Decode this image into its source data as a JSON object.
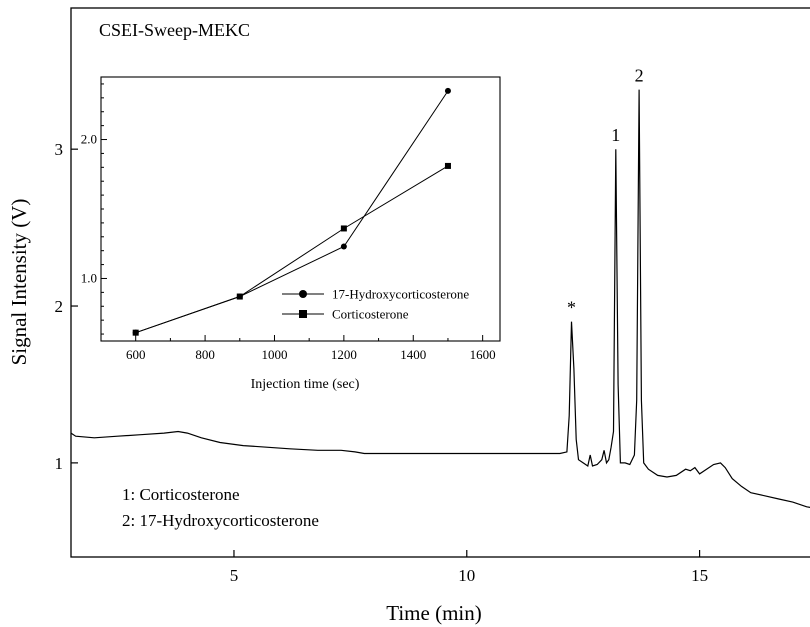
{
  "chart_data": [
    {
      "type": "line",
      "title": "CSEI-Sweep-MEKC",
      "xlabel": "Time (min)",
      "ylabel": "Signal Intensity (V)",
      "xlim": [
        1.5,
        17.5
      ],
      "ylim": [
        0.4,
        3.9
      ],
      "xticks": [
        5,
        10,
        15
      ],
      "yticks": [
        1,
        2,
        3
      ],
      "grid": false,
      "series": [
        {
          "name": "",
          "x": [
            1.5,
            1.6,
            2.0,
            2.5,
            3.0,
            3.5,
            3.8,
            4.0,
            4.3,
            4.7,
            5.2,
            5.7,
            6.2,
            6.8,
            7.3,
            7.6,
            7.8,
            8.5,
            9.0,
            9.5,
            10.0,
            10.5,
            11.0,
            11.5,
            12.0,
            12.15,
            12.2,
            12.25,
            12.3,
            12.35,
            12.4,
            12.5,
            12.6,
            12.65,
            12.7,
            12.8,
            12.9,
            12.95,
            13.0,
            13.05,
            13.1,
            13.15,
            13.2,
            13.25,
            13.3,
            13.4,
            13.5,
            13.6,
            13.65,
            13.7,
            13.75,
            13.8,
            13.9,
            14.1,
            14.3,
            14.5,
            14.7,
            14.8,
            14.9,
            15.0,
            15.1,
            15.3,
            15.45,
            15.55,
            15.7,
            15.9,
            16.1,
            16.4,
            16.7,
            17.0,
            17.3,
            17.5
          ],
          "values": [
            1.19,
            1.17,
            1.16,
            1.17,
            1.18,
            1.19,
            1.2,
            1.19,
            1.16,
            1.13,
            1.11,
            1.1,
            1.09,
            1.08,
            1.08,
            1.07,
            1.06,
            1.06,
            1.06,
            1.06,
            1.06,
            1.06,
            1.06,
            1.06,
            1.06,
            1.07,
            1.3,
            1.9,
            1.6,
            1.15,
            1.02,
            1.0,
            0.98,
            1.05,
            0.98,
            0.99,
            1.02,
            1.08,
            1.0,
            1.02,
            1.1,
            1.2,
            3.0,
            1.5,
            1.0,
            1.0,
            0.99,
            1.05,
            1.4,
            3.38,
            1.4,
            1.0,
            0.96,
            0.92,
            0.91,
            0.92,
            0.96,
            0.95,
            0.97,
            0.93,
            0.95,
            0.99,
            1.0,
            0.97,
            0.9,
            0.85,
            0.81,
            0.79,
            0.77,
            0.75,
            0.72,
            0.71
          ]
        }
      ],
      "peak_labels": [
        {
          "label": "*",
          "x": 12.25,
          "y": 1.9
        },
        {
          "label": "1",
          "x": 13.2,
          "y": 3.0
        },
        {
          "label": "2",
          "x": 13.7,
          "y": 3.38
        }
      ],
      "annotations": [
        "1: Corticosterone",
        "2: 17-Hydroxycorticosterone"
      ]
    },
    {
      "type": "line",
      "title": "",
      "xlabel": "Injection time (sec)",
      "ylabel": "",
      "xlim": [
        500,
        1650
      ],
      "ylim": [
        0.55,
        2.45
      ],
      "xticks": [
        600,
        800,
        1000,
        1200,
        1400,
        1600
      ],
      "yticks": [
        1.0,
        2.0
      ],
      "ytick_labels": [
        "1.0",
        "2.0"
      ],
      "grid": false,
      "legend_position": "right",
      "categories": [
        600,
        900,
        1200,
        1500
      ],
      "series": [
        {
          "name": "17-Hydroxycorticosterone",
          "marker": "circle",
          "values": [
            0.61,
            0.87,
            1.23,
            2.35
          ]
        },
        {
          "name": "Corticosterone",
          "marker": "square",
          "values": [
            0.61,
            0.87,
            1.36,
            1.81
          ]
        }
      ]
    }
  ]
}
